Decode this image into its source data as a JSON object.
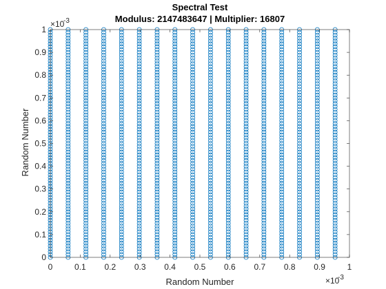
{
  "chart_data": {
    "type": "scatter",
    "title": "Spectral Test",
    "subtitle": "Modulus: 2147483647 | Multiplier: 16807",
    "xlabel": "Random Number",
    "ylabel": "Random Number",
    "x_exponent": "×10",
    "x_exponent_power": "-3",
    "y_exponent": "×10",
    "y_exponent_power": "-3",
    "xlim": [
      0,
      1
    ],
    "ylim": [
      0,
      1
    ],
    "x_ticks": [
      "0",
      "0.1",
      "0.2",
      "0.3",
      "0.4",
      "0.5",
      "0.6",
      "0.7",
      "0.8",
      "0.9",
      "1"
    ],
    "y_ticks": [
      "0",
      "0.1",
      "0.2",
      "0.3",
      "0.4",
      "0.5",
      "0.6",
      "0.7",
      "0.8",
      "0.9",
      "1"
    ],
    "grid": false,
    "marker": "circle-open",
    "marker_color": "#0072BD",
    "series": [
      {
        "column_x": [
          0.0,
          0.0595,
          0.119,
          0.1785,
          0.238,
          0.2975,
          0.357,
          0.4165,
          0.476,
          0.5355,
          0.595,
          0.6545,
          0.714,
          0.7735,
          0.833,
          0.8925,
          0.952
        ],
        "y_range": [
          0.0,
          1.0
        ],
        "y_step": 0.0125
      }
    ]
  }
}
